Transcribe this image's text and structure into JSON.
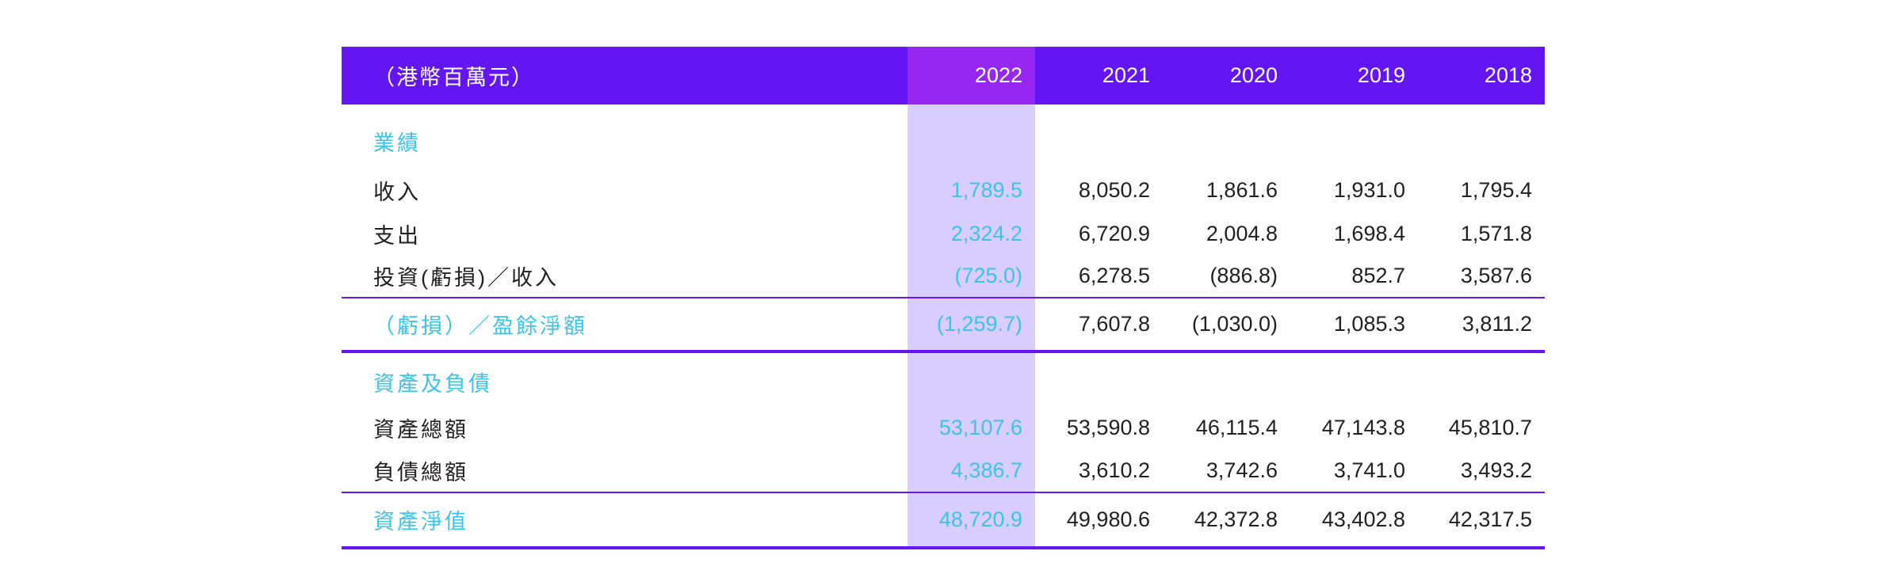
{
  "table": {
    "header": {
      "unit_label": "（港幣百萬元）",
      "years": [
        "2022",
        "2021",
        "2020",
        "2019",
        "2018"
      ]
    },
    "sections": [
      {
        "title": "業績",
        "rows": [
          {
            "label": "收入",
            "values": [
              "1,789.5",
              "8,050.2",
              "1,861.6",
              "1,931.0",
              "1,795.4"
            ]
          },
          {
            "label": "支出",
            "values": [
              "2,324.2",
              "6,720.9",
              "2,004.8",
              "1,698.4",
              "1,571.8"
            ]
          },
          {
            "label": "投資(虧損)／收入",
            "values": [
              "(725.0)",
              "6,278.5",
              "(886.8)",
              "852.7",
              "3,587.6"
            ]
          }
        ],
        "total": {
          "label": "（虧損）／盈餘淨額",
          "values": [
            "(1,259.7)",
            "7,607.8",
            "(1,030.0)",
            "1,085.3",
            "3,811.2"
          ]
        }
      },
      {
        "title": "資產及負債",
        "rows": [
          {
            "label": "資產總額",
            "values": [
              "53,107.6",
              "53,590.8",
              "46,115.4",
              "47,143.8",
              "45,810.7"
            ]
          },
          {
            "label": "負債總額",
            "values": [
              "4,386.7",
              "3,610.2",
              "3,742.6",
              "3,741.0",
              "3,493.2"
            ]
          }
        ],
        "total": {
          "label": "資產淨值",
          "values": [
            "48,720.9",
            "49,980.6",
            "42,372.8",
            "43,402.8",
            "42,317.5"
          ]
        }
      }
    ],
    "colors": {
      "header_bg": "#6316f2",
      "highlight_header_bg": "#9627f3",
      "highlight_column_bg": "#d9cdfd",
      "accent_text": "#3bc3ea",
      "rule": "#6316f2"
    }
  }
}
